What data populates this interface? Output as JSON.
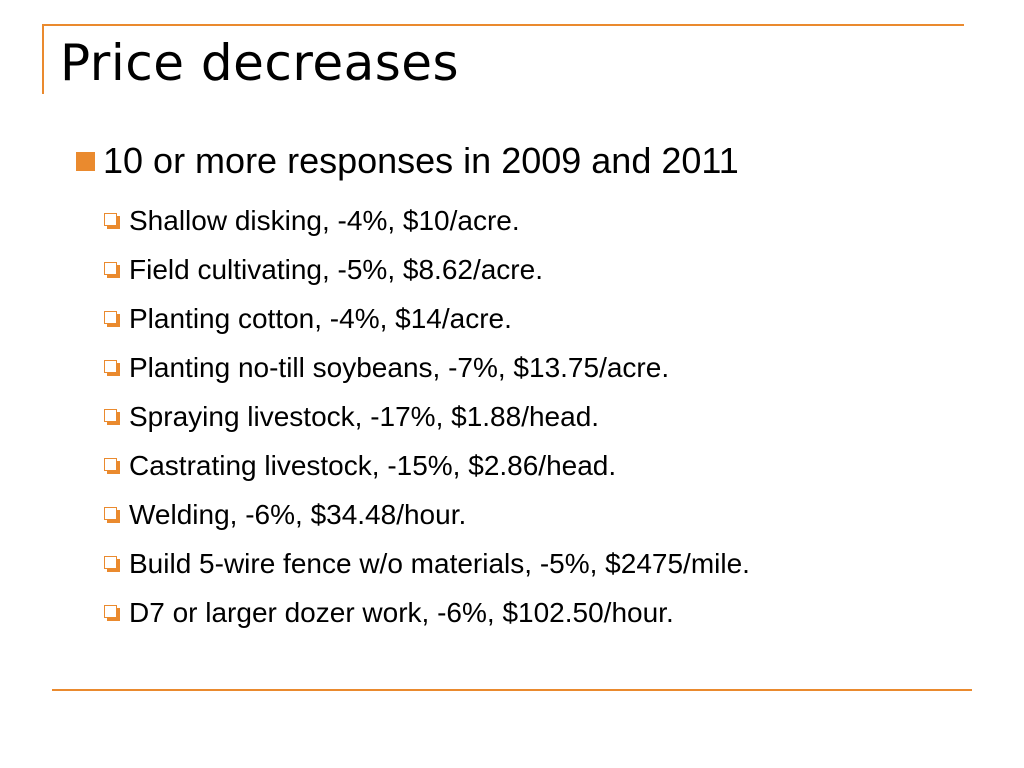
{
  "slide": {
    "title": "Price decreases",
    "accent_color": "#ea8a2e",
    "bullet": {
      "icon": "orange-square-bullet",
      "text": "10 or more responses in 2009 and 2011"
    },
    "sub_bullet_icon": "hollow-box-bullet",
    "items": [
      "Shallow disking, -4%, $10/acre.",
      "Field cultivating, -5%, $8.62/acre.",
      "Planting cotton, -4%, $14/acre.",
      "Planting no-till soybeans, -7%, $13.75/acre.",
      "Spraying livestock, -17%, $1.88/head.",
      "Castrating livestock, -15%, $2.86/head.",
      "Welding, -6%, $34.48/hour.",
      "Build 5-wire fence w/o materials, -5%, $2475/mile.",
      "D7 or larger dozer work, -6%, $102.50/hour."
    ]
  }
}
